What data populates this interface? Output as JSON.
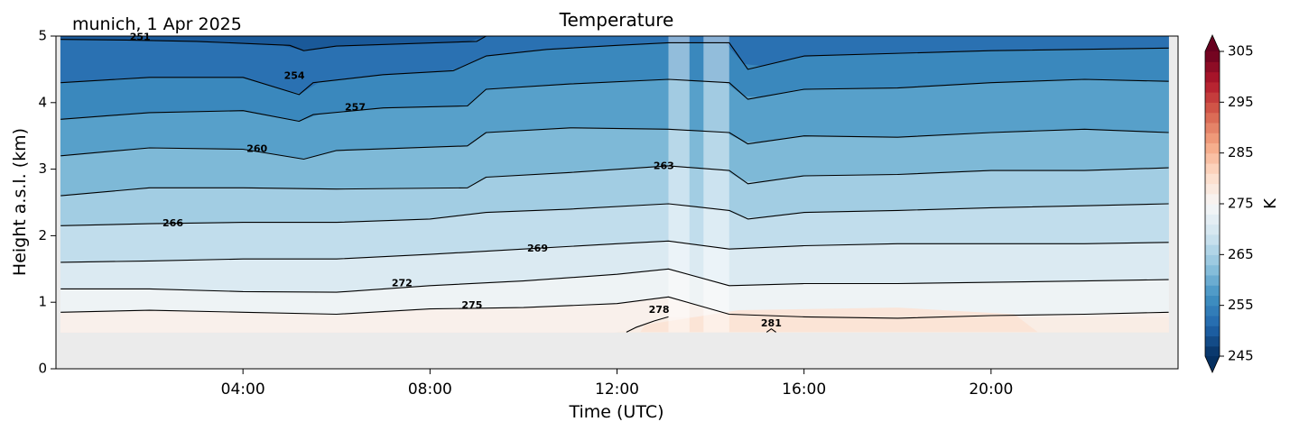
{
  "figure": {
    "location_label": "munich, 1 Apr 2025",
    "title": "Temperature"
  },
  "chart_data": {
    "type": "heatmap",
    "title": "Temperature",
    "subtitle": "munich, 1 Apr 2025",
    "xlabel": "Time (UTC)",
    "ylabel": "Height a.s.l. (km)",
    "x_unit": "hours",
    "xlim": [
      0,
      24
    ],
    "ylim": [
      0,
      5
    ],
    "x_ticks": [
      {
        "value": 4,
        "label": "04:00"
      },
      {
        "value": 8,
        "label": "08:00"
      },
      {
        "value": 12,
        "label": "12:00"
      },
      {
        "value": 16,
        "label": "16:00"
      },
      {
        "value": 20,
        "label": "20:00"
      }
    ],
    "y_ticks": [
      0,
      1,
      2,
      3,
      4,
      5
    ],
    "data_start_height_km": 0.55,
    "data_gaps_hours": [
      [
        13.1,
        13.55
      ],
      [
        13.85,
        14.4
      ]
    ],
    "colorbar": {
      "label": "K",
      "range": [
        245,
        305
      ],
      "ticks": [
        245,
        255,
        265,
        275,
        285,
        295,
        305
      ],
      "colormap": "RdBu_r",
      "extend": "both"
    },
    "contours": [
      {
        "level": 251,
        "points": [
          [
            0.1,
            4.95
          ],
          [
            1.5,
            4.94
          ],
          [
            3,
            4.92
          ],
          [
            5,
            4.86
          ],
          [
            5.3,
            4.78
          ],
          [
            6,
            4.85
          ],
          [
            9,
            4.92
          ],
          [
            9.2,
            5.0
          ]
        ]
      },
      {
        "level": 254,
        "points": [
          [
            0.1,
            4.3
          ],
          [
            2,
            4.38
          ],
          [
            4,
            4.38
          ],
          [
            5.2,
            4.12
          ],
          [
            5.5,
            4.3
          ],
          [
            7,
            4.42
          ],
          [
            8.5,
            4.48
          ],
          [
            9.2,
            4.7
          ],
          [
            10.5,
            4.8
          ],
          [
            12,
            4.86
          ],
          [
            13.1,
            4.9
          ],
          [
            14.4,
            4.9
          ],
          [
            14.8,
            4.5
          ],
          [
            16,
            4.7
          ],
          [
            20,
            4.78
          ],
          [
            23.8,
            4.82
          ]
        ]
      },
      {
        "level": 257,
        "points": [
          [
            0.1,
            3.75
          ],
          [
            2,
            3.85
          ],
          [
            4,
            3.88
          ],
          [
            5.2,
            3.72
          ],
          [
            5.5,
            3.82
          ],
          [
            7,
            3.92
          ],
          [
            8.8,
            3.95
          ],
          [
            9.2,
            4.2
          ],
          [
            11,
            4.28
          ],
          [
            13.1,
            4.35
          ],
          [
            14.4,
            4.3
          ],
          [
            14.8,
            4.05
          ],
          [
            16,
            4.2
          ],
          [
            18,
            4.22
          ],
          [
            20,
            4.3
          ],
          [
            22,
            4.35
          ],
          [
            23.8,
            4.32
          ]
        ]
      },
      {
        "level": 260,
        "points": [
          [
            0.1,
            3.2
          ],
          [
            2,
            3.32
          ],
          [
            4,
            3.3
          ],
          [
            5.3,
            3.15
          ],
          [
            6,
            3.28
          ],
          [
            8.8,
            3.35
          ],
          [
            9.2,
            3.55
          ],
          [
            11,
            3.62
          ],
          [
            13.1,
            3.6
          ],
          [
            14.4,
            3.55
          ],
          [
            14.8,
            3.38
          ],
          [
            16,
            3.5
          ],
          [
            18,
            3.48
          ],
          [
            20,
            3.55
          ],
          [
            22,
            3.6
          ],
          [
            23.8,
            3.55
          ]
        ]
      },
      {
        "level": 263,
        "points": [
          [
            0.1,
            2.6
          ],
          [
            2,
            2.72
          ],
          [
            4,
            2.72
          ],
          [
            6,
            2.7
          ],
          [
            8.8,
            2.72
          ],
          [
            9.2,
            2.88
          ],
          [
            11,
            2.95
          ],
          [
            13.1,
            3.05
          ],
          [
            14.4,
            2.98
          ],
          [
            14.8,
            2.78
          ],
          [
            16,
            2.9
          ],
          [
            18,
            2.92
          ],
          [
            20,
            2.98
          ],
          [
            22,
            2.98
          ],
          [
            23.8,
            3.02
          ]
        ]
      },
      {
        "level": 266,
        "points": [
          [
            0.1,
            2.15
          ],
          [
            2,
            2.18
          ],
          [
            4,
            2.2
          ],
          [
            6,
            2.2
          ],
          [
            8,
            2.25
          ],
          [
            9.2,
            2.35
          ],
          [
            11,
            2.4
          ],
          [
            13.1,
            2.48
          ],
          [
            14.4,
            2.38
          ],
          [
            14.8,
            2.25
          ],
          [
            16,
            2.35
          ],
          [
            18,
            2.38
          ],
          [
            20,
            2.42
          ],
          [
            22,
            2.45
          ],
          [
            23.8,
            2.48
          ]
        ]
      },
      {
        "level": 269,
        "points": [
          [
            0.1,
            1.6
          ],
          [
            2,
            1.62
          ],
          [
            4,
            1.65
          ],
          [
            6,
            1.65
          ],
          [
            8,
            1.72
          ],
          [
            10,
            1.8
          ],
          [
            12,
            1.88
          ],
          [
            13.1,
            1.92
          ],
          [
            14.4,
            1.8
          ],
          [
            16,
            1.85
          ],
          [
            18,
            1.88
          ],
          [
            20,
            1.88
          ],
          [
            22,
            1.88
          ],
          [
            23.8,
            1.9
          ]
        ]
      },
      {
        "level": 272,
        "points": [
          [
            0.1,
            1.2
          ],
          [
            2,
            1.2
          ],
          [
            4,
            1.16
          ],
          [
            6,
            1.15
          ],
          [
            8,
            1.25
          ],
          [
            10,
            1.32
          ],
          [
            12,
            1.42
          ],
          [
            13.1,
            1.5
          ],
          [
            14.4,
            1.25
          ],
          [
            16,
            1.28
          ],
          [
            18,
            1.28
          ],
          [
            20,
            1.3
          ],
          [
            22,
            1.32
          ],
          [
            23.8,
            1.34
          ]
        ]
      },
      {
        "level": 275,
        "points": [
          [
            0.1,
            0.85
          ],
          [
            2,
            0.88
          ],
          [
            4,
            0.85
          ],
          [
            6,
            0.82
          ],
          [
            8,
            0.9
          ],
          [
            10,
            0.92
          ],
          [
            12,
            0.98
          ],
          [
            13.1,
            1.08
          ],
          [
            14.4,
            0.82
          ],
          [
            16,
            0.78
          ],
          [
            18,
            0.76
          ],
          [
            20,
            0.8
          ],
          [
            22,
            0.82
          ],
          [
            23.8,
            0.85
          ]
        ]
      },
      {
        "level": 278,
        "points": [
          [
            12.2,
            0.55
          ],
          [
            12.4,
            0.62
          ],
          [
            12.8,
            0.72
          ],
          [
            13.1,
            0.78
          ]
        ]
      },
      {
        "level": 281,
        "points": [
          [
            15.2,
            0.55
          ],
          [
            15.3,
            0.6
          ],
          [
            15.4,
            0.55
          ]
        ]
      }
    ],
    "contour_labels": [
      {
        "level": 251,
        "x": 1.8,
        "y": 4.98
      },
      {
        "level": 254,
        "x": 5.1,
        "y": 4.4
      },
      {
        "level": 257,
        "x": 6.4,
        "y": 3.92
      },
      {
        "level": 260,
        "x": 4.3,
        "y": 3.3
      },
      {
        "level": 263,
        "x": 13.0,
        "y": 3.04
      },
      {
        "level": 266,
        "x": 2.5,
        "y": 2.18
      },
      {
        "level": 269,
        "x": 10.3,
        "y": 1.8
      },
      {
        "level": 272,
        "x": 7.4,
        "y": 1.28
      },
      {
        "level": 275,
        "x": 8.9,
        "y": 0.95
      },
      {
        "level": 278,
        "x": 12.9,
        "y": 0.88
      },
      {
        "level": 281,
        "x": 15.3,
        "y": 0.68
      }
    ]
  }
}
